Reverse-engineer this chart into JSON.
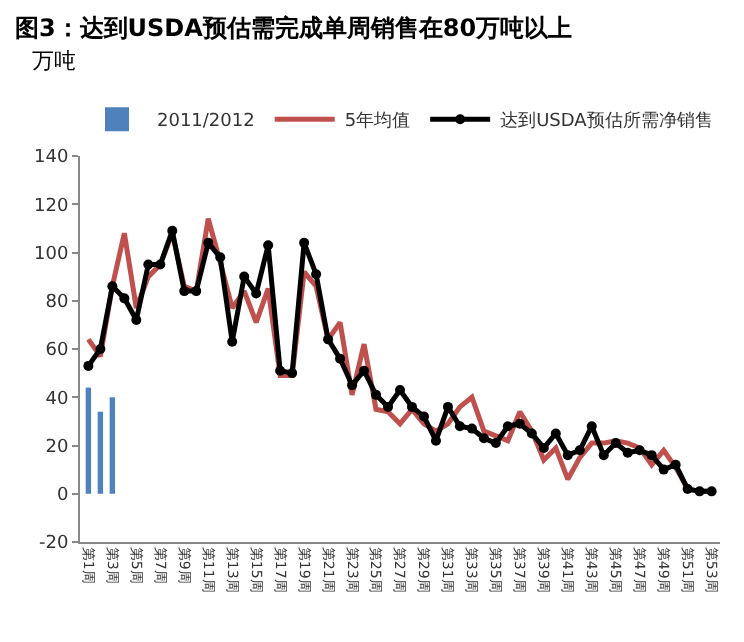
{
  "chart_data": {
    "type": "line",
    "title": "图3：达到USDA预估需完成单周销售在80万吨以上",
    "ylabel": "万吨",
    "categories": [
      "第1周",
      null,
      "第3周",
      null,
      "第5周",
      null,
      "第7周",
      null,
      "第9周",
      null,
      "第11周",
      null,
      "第13周",
      null,
      "第15周",
      null,
      "第17周",
      null,
      "第19周",
      null,
      "第21周",
      null,
      "第23周",
      null,
      "第25周",
      null,
      "第27周",
      null,
      "第29周",
      null,
      "第31周",
      null,
      "第33周",
      null,
      "第35周",
      null,
      "第37周",
      null,
      "第39周",
      null,
      "第41周",
      null,
      "第43周",
      null,
      "第45周",
      null,
      "第47周",
      null,
      "第49周",
      null,
      "第51周",
      null,
      "第53周"
    ],
    "series": [
      {
        "name": "2011/2012",
        "type": "bar",
        "color": "#4f81bd",
        "values": [
          44,
          34,
          40,
          null,
          null,
          null,
          null,
          null,
          null,
          null,
          null,
          null,
          null,
          null,
          null,
          null,
          null,
          null,
          null,
          null,
          null,
          null,
          null,
          null,
          null,
          null,
          null,
          null,
          null,
          null,
          null,
          null,
          null,
          null,
          null,
          null,
          null,
          null,
          null,
          null,
          null,
          null,
          null,
          null,
          null,
          null,
          null,
          null,
          null,
          null,
          null,
          null,
          null
        ]
      },
      {
        "name": "5年均值",
        "color": "#c0504d",
        "marker": "none",
        "values": [
          64,
          57,
          86,
          108,
          77,
          90,
          95,
          108,
          86,
          84,
          114,
          96,
          77,
          84,
          71,
          85,
          49,
          49,
          92,
          86,
          64,
          71,
          41,
          62,
          35,
          34,
          29,
          35,
          29,
          26,
          29,
          36,
          40,
          26,
          24,
          22,
          34,
          26,
          14,
          19,
          6,
          15,
          21,
          21,
          22,
          21,
          19,
          12,
          18,
          11,
          2,
          1,
          1
        ]
      },
      {
        "name": "达到USDA预估所需净销售",
        "color": "#000000",
        "marker": "circle",
        "values": [
          53,
          60,
          86,
          81,
          72,
          95,
          95,
          109,
          84,
          84,
          104,
          98,
          63,
          90,
          83,
          103,
          51,
          50,
          104,
          91,
          64,
          56,
          45,
          51,
          41,
          36,
          43,
          36,
          32,
          22,
          36,
          28,
          27,
          23,
          21,
          28,
          29,
          25,
          19,
          25,
          16,
          18,
          28,
          16,
          21,
          17,
          18,
          16,
          10,
          12,
          2,
          1,
          1
        ]
      }
    ],
    "ylim": [
      -20,
      140
    ],
    "yticks": [
      -20,
      0,
      20,
      40,
      60,
      80,
      100,
      120,
      140
    ],
    "grid": false,
    "legend": "top",
    "line_style": "solid"
  }
}
